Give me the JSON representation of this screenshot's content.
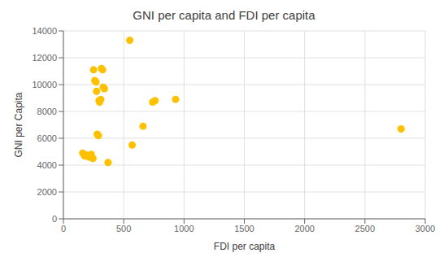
{
  "chart_data": {
    "type": "scatter",
    "title": "GNI per capita and FDI per capita",
    "xlabel": "FDI per capita",
    "ylabel": "GNI per Capita",
    "x": [
      160,
      175,
      190,
      210,
      230,
      235,
      245,
      250,
      260,
      270,
      275,
      280,
      290,
      295,
      300,
      310,
      315,
      325,
      330,
      340,
      370,
      550,
      570,
      660,
      740,
      760,
      930,
      2800
    ],
    "values": [
      4900,
      4700,
      4750,
      4600,
      4800,
      4550,
      4500,
      11100,
      10300,
      10200,
      9500,
      6300,
      6200,
      8800,
      8700,
      8900,
      11200,
      11100,
      9800,
      9700,
      4200,
      13300,
      5500,
      6900,
      8700,
      8800,
      8900,
      6700
    ],
    "color": "#FFC000",
    "xlim": [
      0,
      3000
    ],
    "ylim": [
      0,
      14000
    ],
    "xticks": [
      0,
      500,
      1000,
      1500,
      2000,
      2500,
      3000
    ],
    "yticks": [
      0,
      2000,
      4000,
      6000,
      8000,
      10000,
      12000,
      14000
    ],
    "grid": true
  }
}
